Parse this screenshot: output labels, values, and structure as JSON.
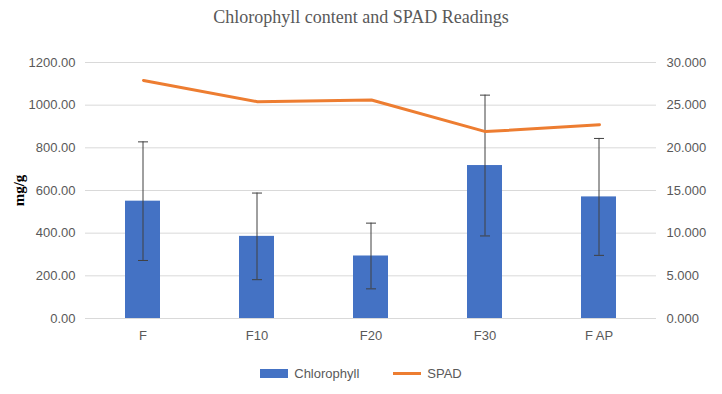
{
  "chart_data": {
    "type": "bar",
    "title": "Chlorophyll content and SPAD Readings",
    "categories": [
      "F",
      "F10",
      "F20",
      "F30",
      "F AP"
    ],
    "series": [
      {
        "name": "Chlorophyll",
        "type": "bar",
        "color": "#4472C4",
        "values": [
          550,
          385,
          293,
          717,
          570
        ],
        "errors": [
          278,
          203,
          154,
          330,
          274
        ]
      },
      {
        "name": "SPAD",
        "type": "line",
        "axis": "y2",
        "color": "#ED7D31",
        "values": [
          27.9,
          25.4,
          25.6,
          21.9,
          22.7
        ]
      }
    ],
    "ylabel": "mg/g",
    "ylim": [
      0,
      1200
    ],
    "yticks": [
      {
        "value": 0,
        "label": "0.00"
      },
      {
        "value": 200,
        "label": "200.00"
      },
      {
        "value": 400,
        "label": "400.00"
      },
      {
        "value": 600,
        "label": "600.00"
      },
      {
        "value": 800,
        "label": "800.00"
      },
      {
        "value": 1000,
        "label": "1000.00"
      },
      {
        "value": 1200,
        "label": "1200.00"
      }
    ],
    "y2lim": [
      0,
      30
    ],
    "y2ticks": [
      {
        "value": 0,
        "label": "0.000"
      },
      {
        "value": 5,
        "label": "5.000"
      },
      {
        "value": 10,
        "label": "10.000"
      },
      {
        "value": 15,
        "label": "15.000"
      },
      {
        "value": 20,
        "label": "20.000"
      },
      {
        "value": 25,
        "label": "25.000"
      },
      {
        "value": 30,
        "label": "30.000"
      }
    ],
    "grid": true,
    "legend": "bottom"
  }
}
